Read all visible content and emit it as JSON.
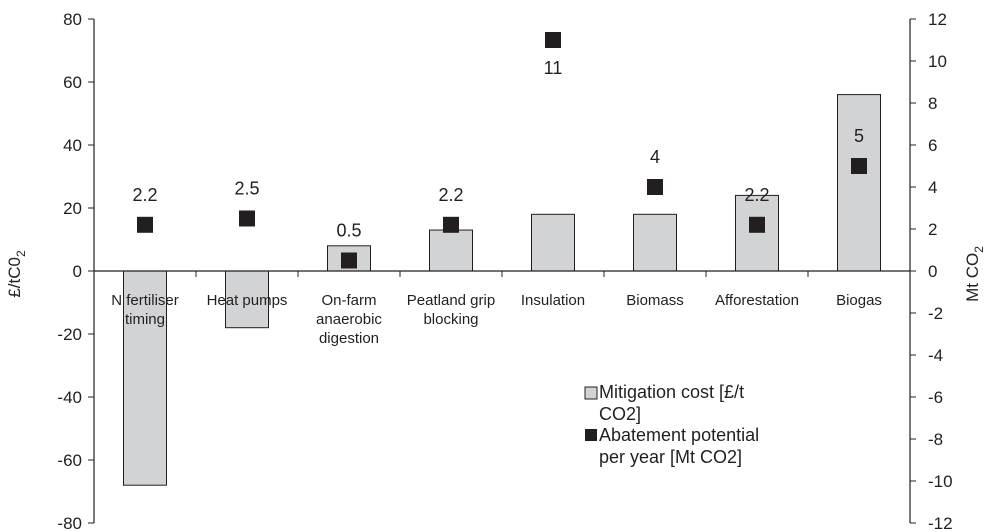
{
  "chart_data": {
    "type": "bar",
    "categories": [
      [
        "N fertiliser",
        "timing"
      ],
      [
        "Heat pumps"
      ],
      [
        "On-farm",
        "anaerobic",
        "digestion"
      ],
      [
        "Peatland grip",
        "blocking"
      ],
      [
        "Insulation"
      ],
      [
        "Biomass"
      ],
      [
        "Afforestation"
      ],
      [
        "Biogas"
      ]
    ],
    "series": [
      {
        "name": "Mitigation cost [£/t CO2]",
        "axis": "left",
        "kind": "bar",
        "values": [
          -68,
          -18,
          8,
          13,
          18,
          18,
          24,
          56
        ]
      },
      {
        "name": "Abatement potential per year [Mt CO2]",
        "axis": "right",
        "kind": "marker",
        "values": [
          2.2,
          2.5,
          0.5,
          2.2,
          11,
          4,
          2.2,
          5
        ]
      }
    ],
    "data_labels": [
      "2.2",
      "2.5",
      "0.5",
      "2.2",
      "11",
      "4",
      "2.2",
      "5"
    ],
    "ylabel": "£/tC0₂",
    "ylabel_right": "Mt CO₂",
    "ylim": [
      -80,
      80
    ],
    "ylim_right": [
      -12,
      12
    ],
    "yticks": [
      -80,
      -60,
      -40,
      -20,
      0,
      20,
      40,
      60,
      80
    ],
    "yticks_right": [
      -12,
      -10,
      -8,
      -6,
      -4,
      -2,
      0,
      2,
      4,
      6,
      8,
      10,
      12
    ],
    "legend": {
      "placement": "bottom-right",
      "items": [
        {
          "lines": [
            "Mitigation cost [£/t",
            "CO2]"
          ]
        },
        {
          "lines": [
            "Abatement potential",
            "per year [Mt CO2]"
          ]
        }
      ]
    },
    "grid": false,
    "colors": {
      "bar_fill": "#d1d3d4",
      "bar_stroke": "#231f20",
      "marker": "#231f20",
      "axis": "#231f20"
    }
  }
}
